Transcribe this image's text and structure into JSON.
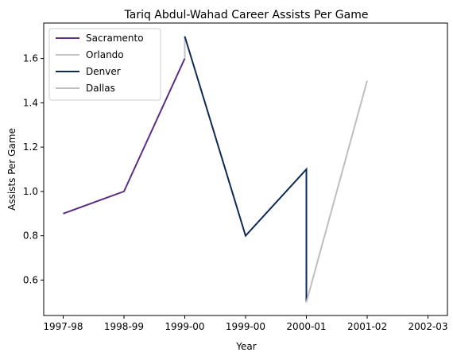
{
  "chart_data": {
    "type": "line",
    "title": "Tariq Abdul-Wahad Career Assists Per Game",
    "xlabel": "Year",
    "ylabel": "Assists Per Game",
    "x_ticks": [
      "1997-98",
      "1998-99",
      "1999-00",
      "1999-00",
      "2000-01",
      "2001-02",
      "2002-03"
    ],
    "x_tick_positions": [
      0,
      1,
      2,
      3,
      4,
      5,
      6
    ],
    "xlim": [
      -0.32,
      6.32
    ],
    "ylim": [
      0.44,
      1.76
    ],
    "y_ticks": [
      0.6,
      0.8,
      1.0,
      1.2,
      1.4,
      1.6
    ],
    "grid": false,
    "legend_position": "top-left",
    "series": [
      {
        "name": "Sacramento",
        "color": "#5a2d82",
        "x": [
          0,
          1,
          2.0,
          2.0
        ],
        "y": [
          0.9,
          1.0,
          1.6,
          1.6
        ]
      },
      {
        "name": "Orlando",
        "color": "#c4c4c4",
        "x": [
          2.0,
          2.0
        ],
        "y": [
          1.6,
          1.7
        ]
      },
      {
        "name": "Denver",
        "color": "#0e2a57",
        "x": [
          2.0,
          3.0,
          4.0,
          4.0
        ],
        "y": [
          1.7,
          0.8,
          1.1,
          0.5
        ]
      },
      {
        "name": "Dallas",
        "color": "#bfbfbf",
        "x": [
          4.0,
          5.0
        ],
        "y": [
          0.5,
          1.5
        ]
      }
    ]
  }
}
